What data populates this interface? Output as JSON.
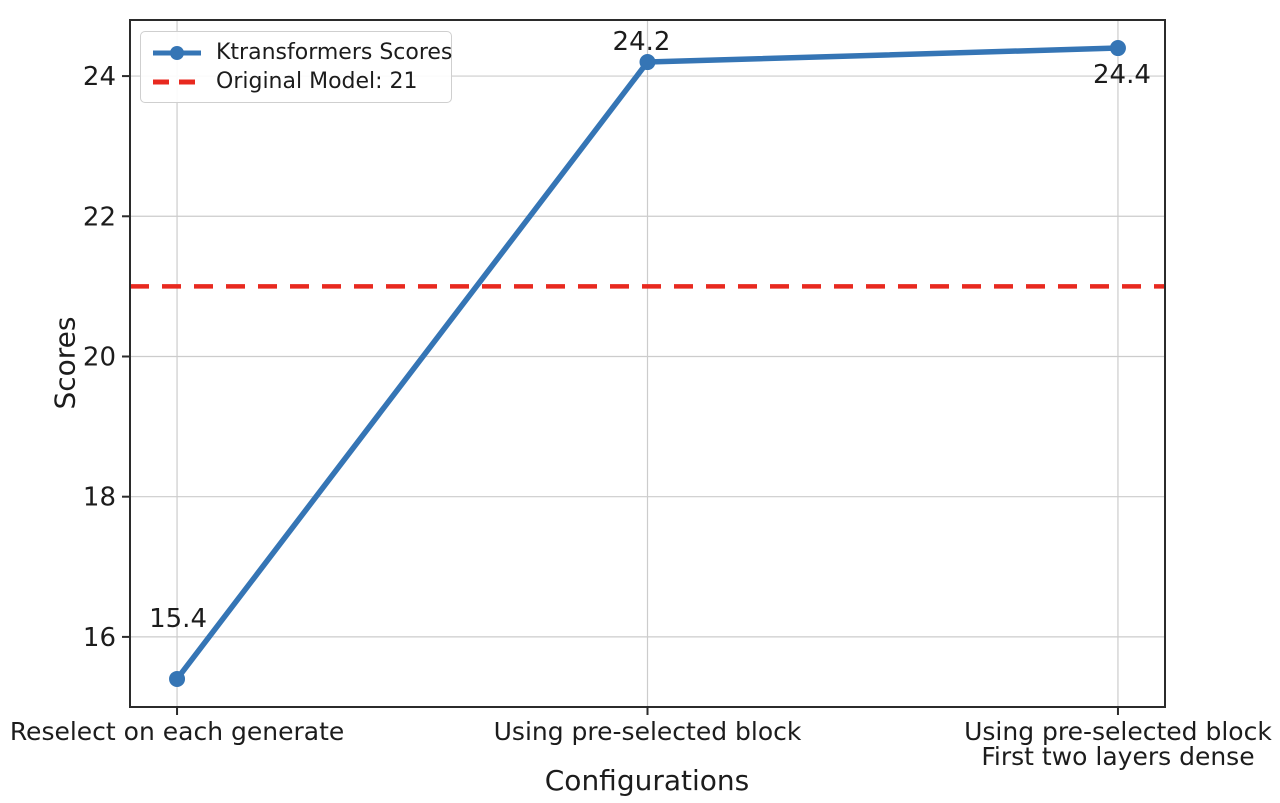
{
  "figure": {
    "background": "#ffffff"
  },
  "legend": {
    "position": "upper-left",
    "items": [
      {
        "label": "Ktransformers Scores",
        "type": "line-with-marker",
        "color": "#3575b5"
      },
      {
        "label": "Original Model: 21",
        "type": "dashed-line",
        "color": "#e8291f"
      }
    ]
  },
  "chart_data": {
    "type": "line",
    "title": "",
    "xlabel": "Configurations",
    "ylabel": "Scores",
    "categories": [
      "Reselect on each generate",
      "Using pre-selected block",
      "Using pre-selected block\nFirst two layers dense"
    ],
    "series": [
      {
        "name": "Ktransformers Scores",
        "color": "#3575b5",
        "values": [
          15.4,
          24.2,
          24.4
        ],
        "point_labels": [
          "15.4",
          "24.2",
          "24.4"
        ]
      }
    ],
    "reference_line": {
      "name": "Original Model: 21",
      "value": 21,
      "color": "#e8291f",
      "style": "dashed"
    },
    "yticks": [
      16,
      18,
      20,
      22,
      24
    ],
    "ylim": [
      15.0,
      24.8
    ],
    "xlim": [
      -0.1,
      2.1
    ],
    "grid": true,
    "legend_position": "upper-left",
    "colors": {
      "grid": "#cccccc",
      "spine": "#2b2b2b",
      "text": "#1c1c1c"
    }
  }
}
